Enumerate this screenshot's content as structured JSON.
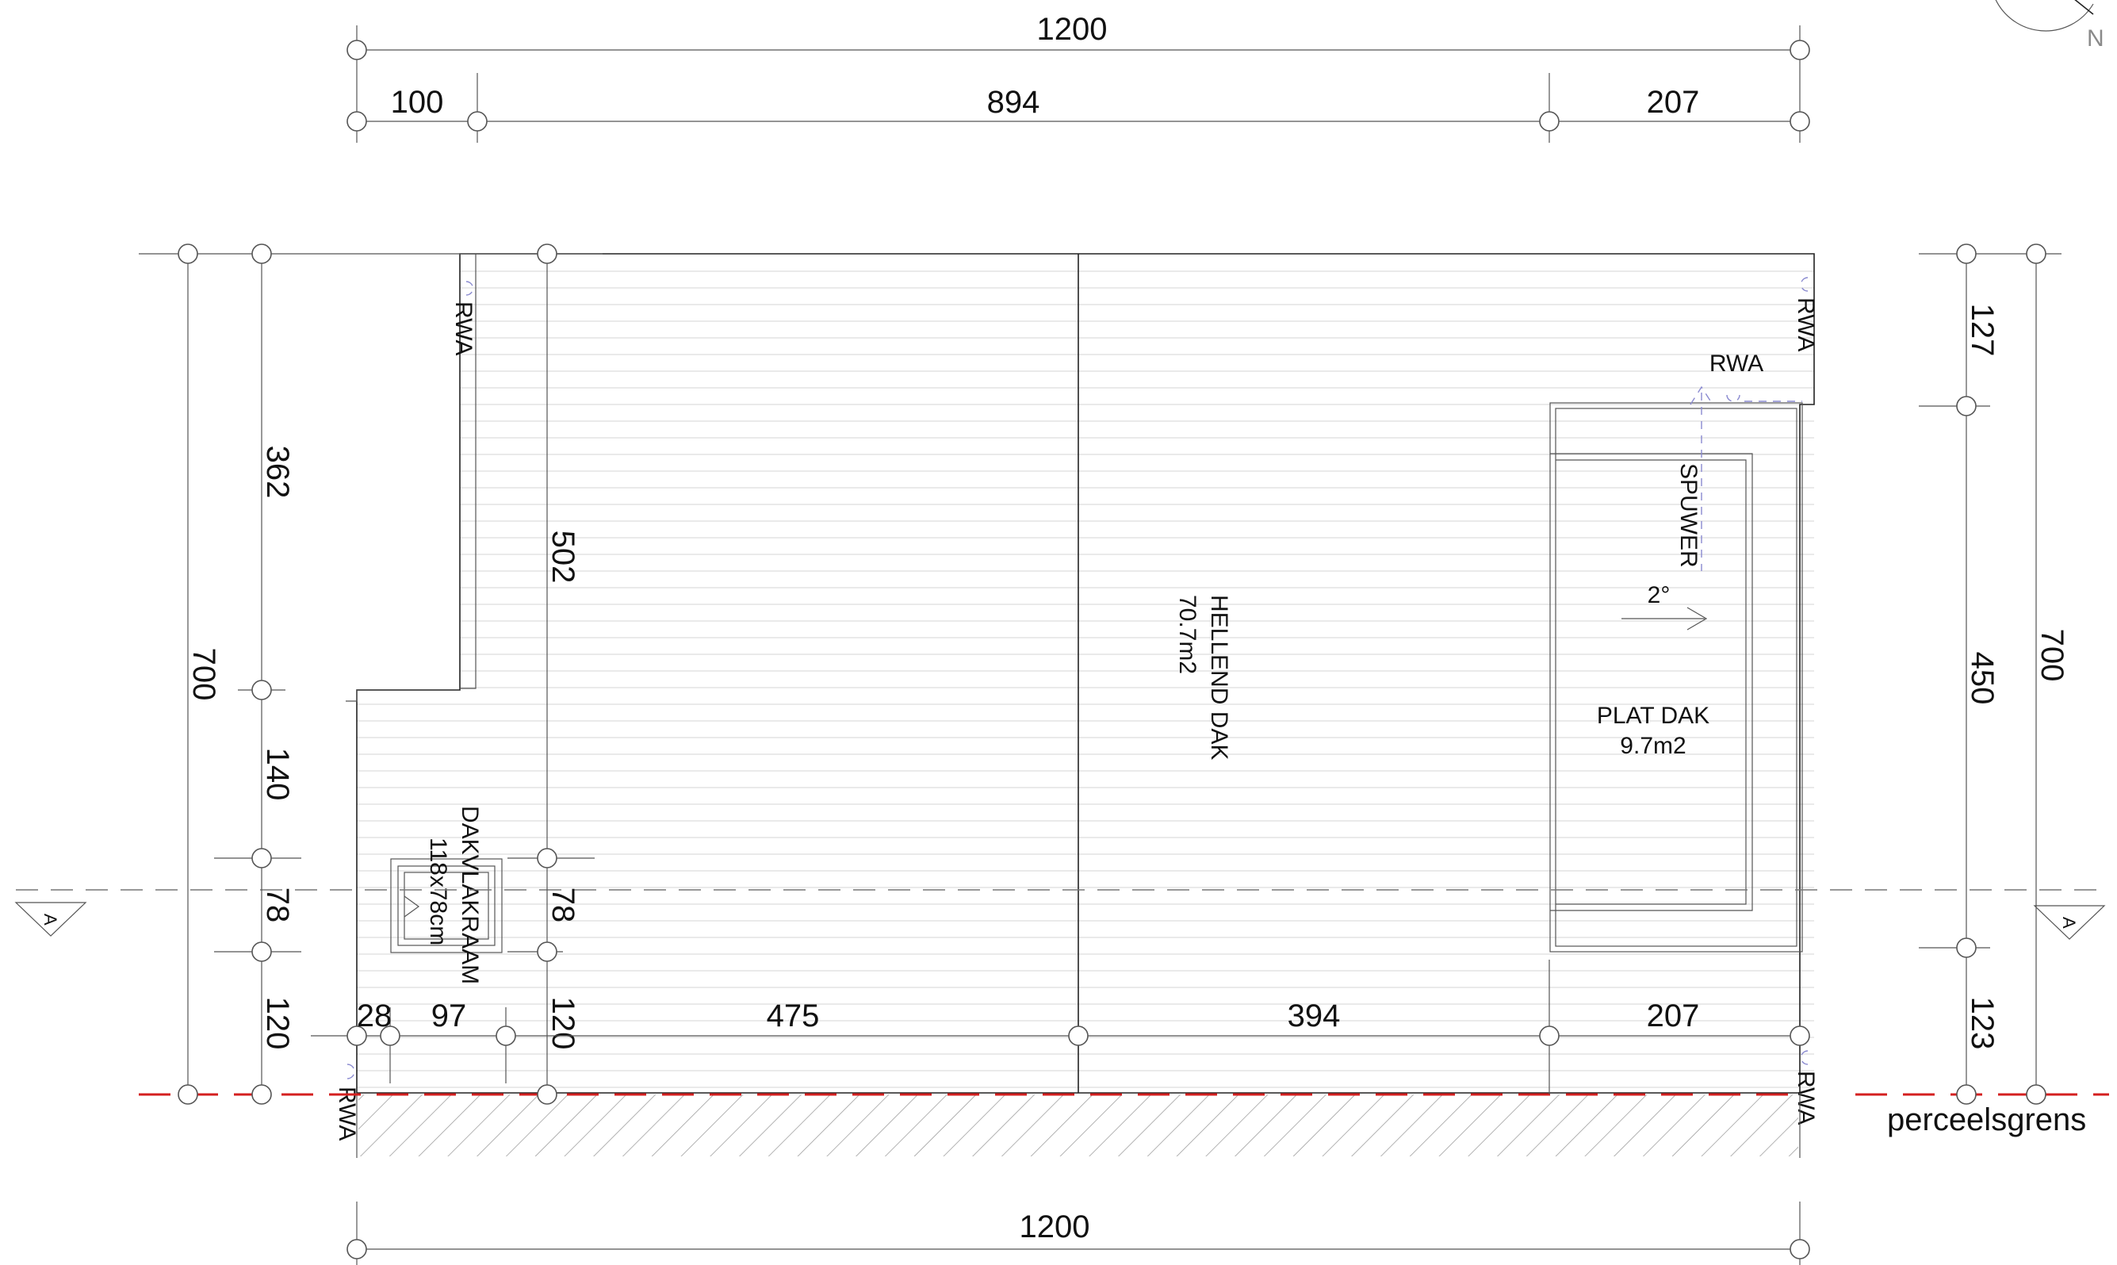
{
  "dimensions": {
    "top_total": "1200",
    "top_left": "100",
    "top_mid": "894",
    "top_right": "207",
    "bottom_total": "1200",
    "inner_28": "28",
    "inner_97": "97",
    "inner_475": "475",
    "inner_394": "394",
    "inner_207": "207",
    "left_total": "700",
    "left_362": "362",
    "left_140": "140",
    "left_78": "78",
    "left_120": "120",
    "mid_502": "502",
    "mid_78": "78",
    "mid_120": "120",
    "right_127": "127",
    "right_450": "450",
    "right_123": "123",
    "right_total": "700"
  },
  "labels": {
    "rwa": "RWA",
    "spuwer": "SPUWER",
    "slope": "2°",
    "hellend_dak": "HELLEND DAK",
    "hellend_area": "70.7m2",
    "plat_dak": "PLAT DAK",
    "plat_area": "9.7m2",
    "dakvlakraam": "DAKVLAKRAAM",
    "dakvlakraam_size": "118x78cm",
    "section_marker": "A",
    "perceelsgrens": "perceelsgrens",
    "north": "N"
  },
  "colors": {
    "boundary": "#d42020",
    "hatch": "#9a9a9a",
    "drain": "#8a8ad0"
  }
}
